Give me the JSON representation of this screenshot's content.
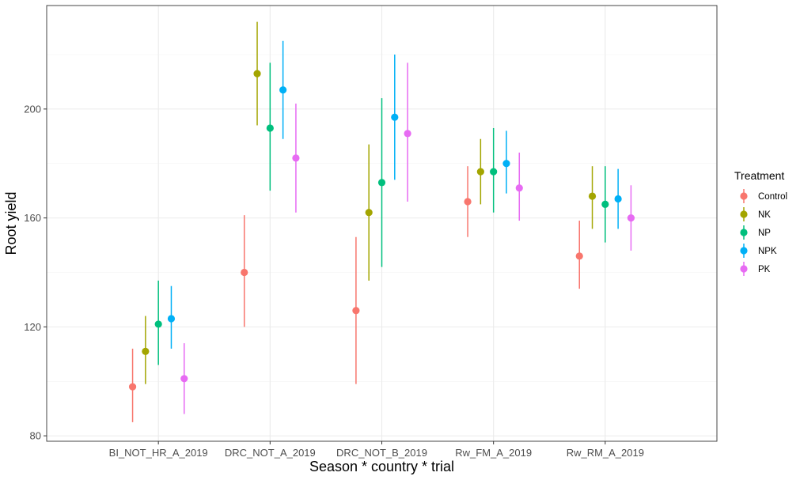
{
  "chart_data": {
    "type": "scatter",
    "subtype": "pointrange",
    "xlabel": "Season * country * trial",
    "ylabel": "Root yield",
    "categories": [
      "BI_NOT_HR_A_2019",
      "DRC_NOT_A_2019",
      "DRC_NOT_B_2019",
      "Rw_FM_A_2019",
      "Rw_RM_A_2019"
    ],
    "ylim": [
      78,
      238
    ],
    "y_ticks": [
      80,
      120,
      160,
      200
    ],
    "grid": true,
    "legend": {
      "title": "Treatment",
      "position": "right"
    },
    "series": [
      {
        "name": "Control",
        "color": "#F8766D",
        "values": [
          98,
          140,
          126,
          166,
          146
        ],
        "lower": [
          85,
          120,
          99,
          153,
          134
        ],
        "upper": [
          112,
          161,
          153,
          179,
          159
        ]
      },
      {
        "name": "NK",
        "color": "#A3A500",
        "values": [
          111,
          213,
          162,
          177,
          168
        ],
        "lower": [
          99,
          194,
          137,
          165,
          156
        ],
        "upper": [
          124,
          232,
          187,
          189,
          179
        ]
      },
      {
        "name": "NP",
        "color": "#00BF7D",
        "values": [
          121,
          193,
          173,
          177,
          165
        ],
        "lower": [
          106,
          170,
          142,
          162,
          151
        ],
        "upper": [
          137,
          217,
          204,
          193,
          179
        ]
      },
      {
        "name": "NPK",
        "color": "#00B0F6",
        "values": [
          123,
          207,
          197,
          180,
          167
        ],
        "lower": [
          112,
          189,
          174,
          169,
          156
        ],
        "upper": [
          135,
          225,
          220,
          192,
          178
        ]
      },
      {
        "name": "PK",
        "color": "#E76BF3",
        "values": [
          101,
          182,
          191,
          171,
          160
        ],
        "lower": [
          88,
          162,
          166,
          159,
          148
        ],
        "upper": [
          114,
          202,
          217,
          184,
          172
        ]
      }
    ]
  }
}
